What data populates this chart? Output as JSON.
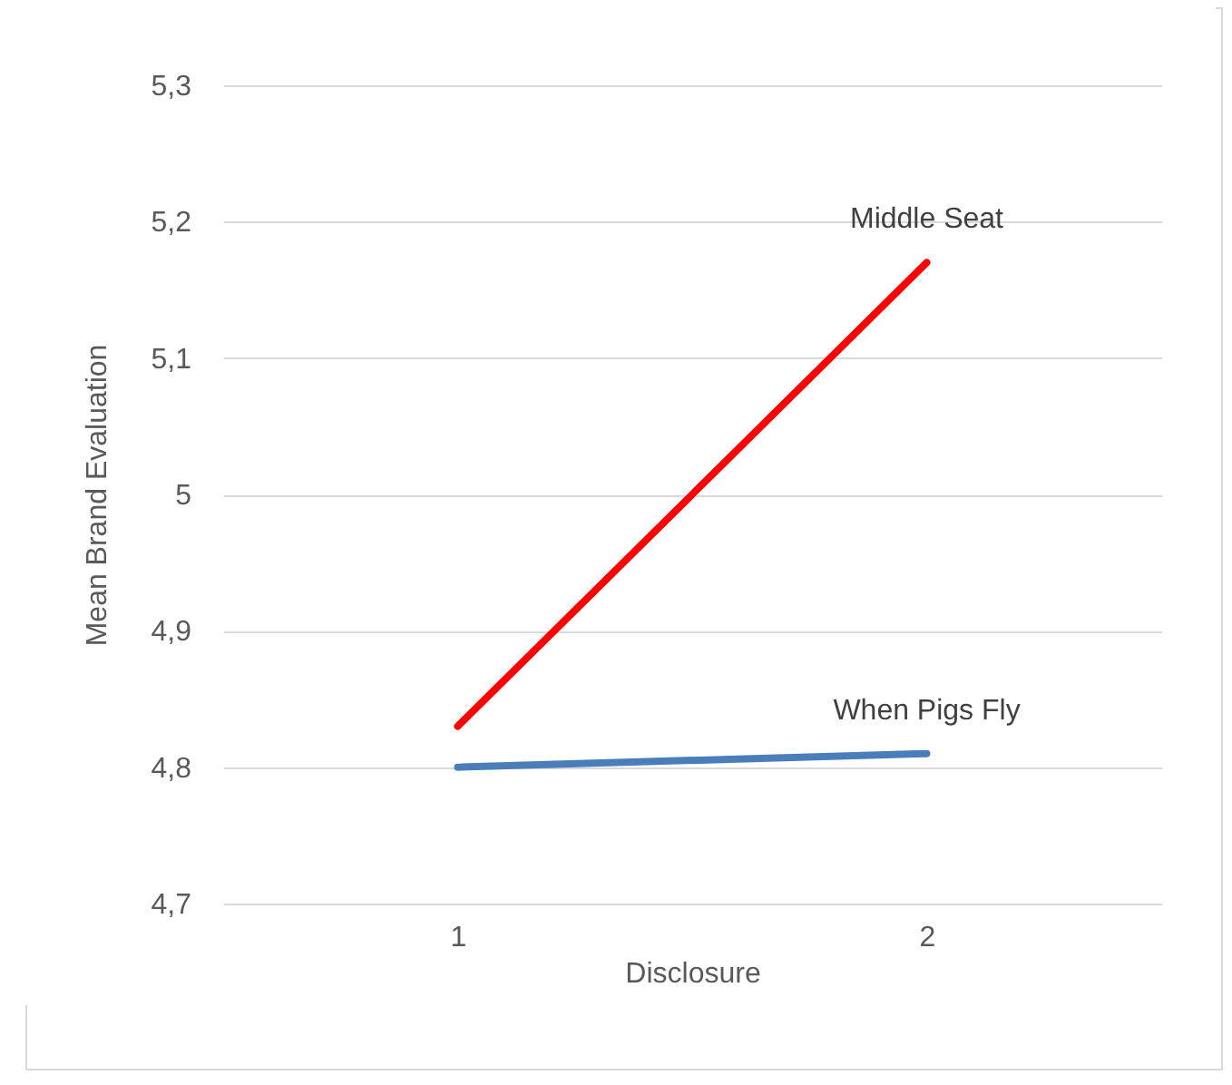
{
  "chart_data": {
    "type": "line",
    "xlabel": "Disclosure",
    "ylabel": "Mean Brand Evaluation",
    "categories": [
      "1",
      "2"
    ],
    "series": [
      {
        "name": "Middle Seat",
        "color": "#ff0000",
        "values": [
          4.83,
          5.17
        ]
      },
      {
        "name": "When Pigs Fly",
        "color": "#4a7ebb",
        "values": [
          4.8,
          4.81
        ]
      }
    ],
    "ylim": [
      4.7,
      5.3
    ],
    "yticks": [
      {
        "value": 4.7,
        "label": "4,7"
      },
      {
        "value": 4.8,
        "label": "4,8"
      },
      {
        "value": 4.9,
        "label": "4,9"
      },
      5,
      {
        "value": 5.1,
        "label": "5,1"
      },
      {
        "value": 5.2,
        "label": "5,2"
      },
      {
        "value": 5.3,
        "label": "5,3"
      }
    ],
    "grid": "y",
    "legend": false,
    "marker": "none",
    "line_style": "solid"
  }
}
